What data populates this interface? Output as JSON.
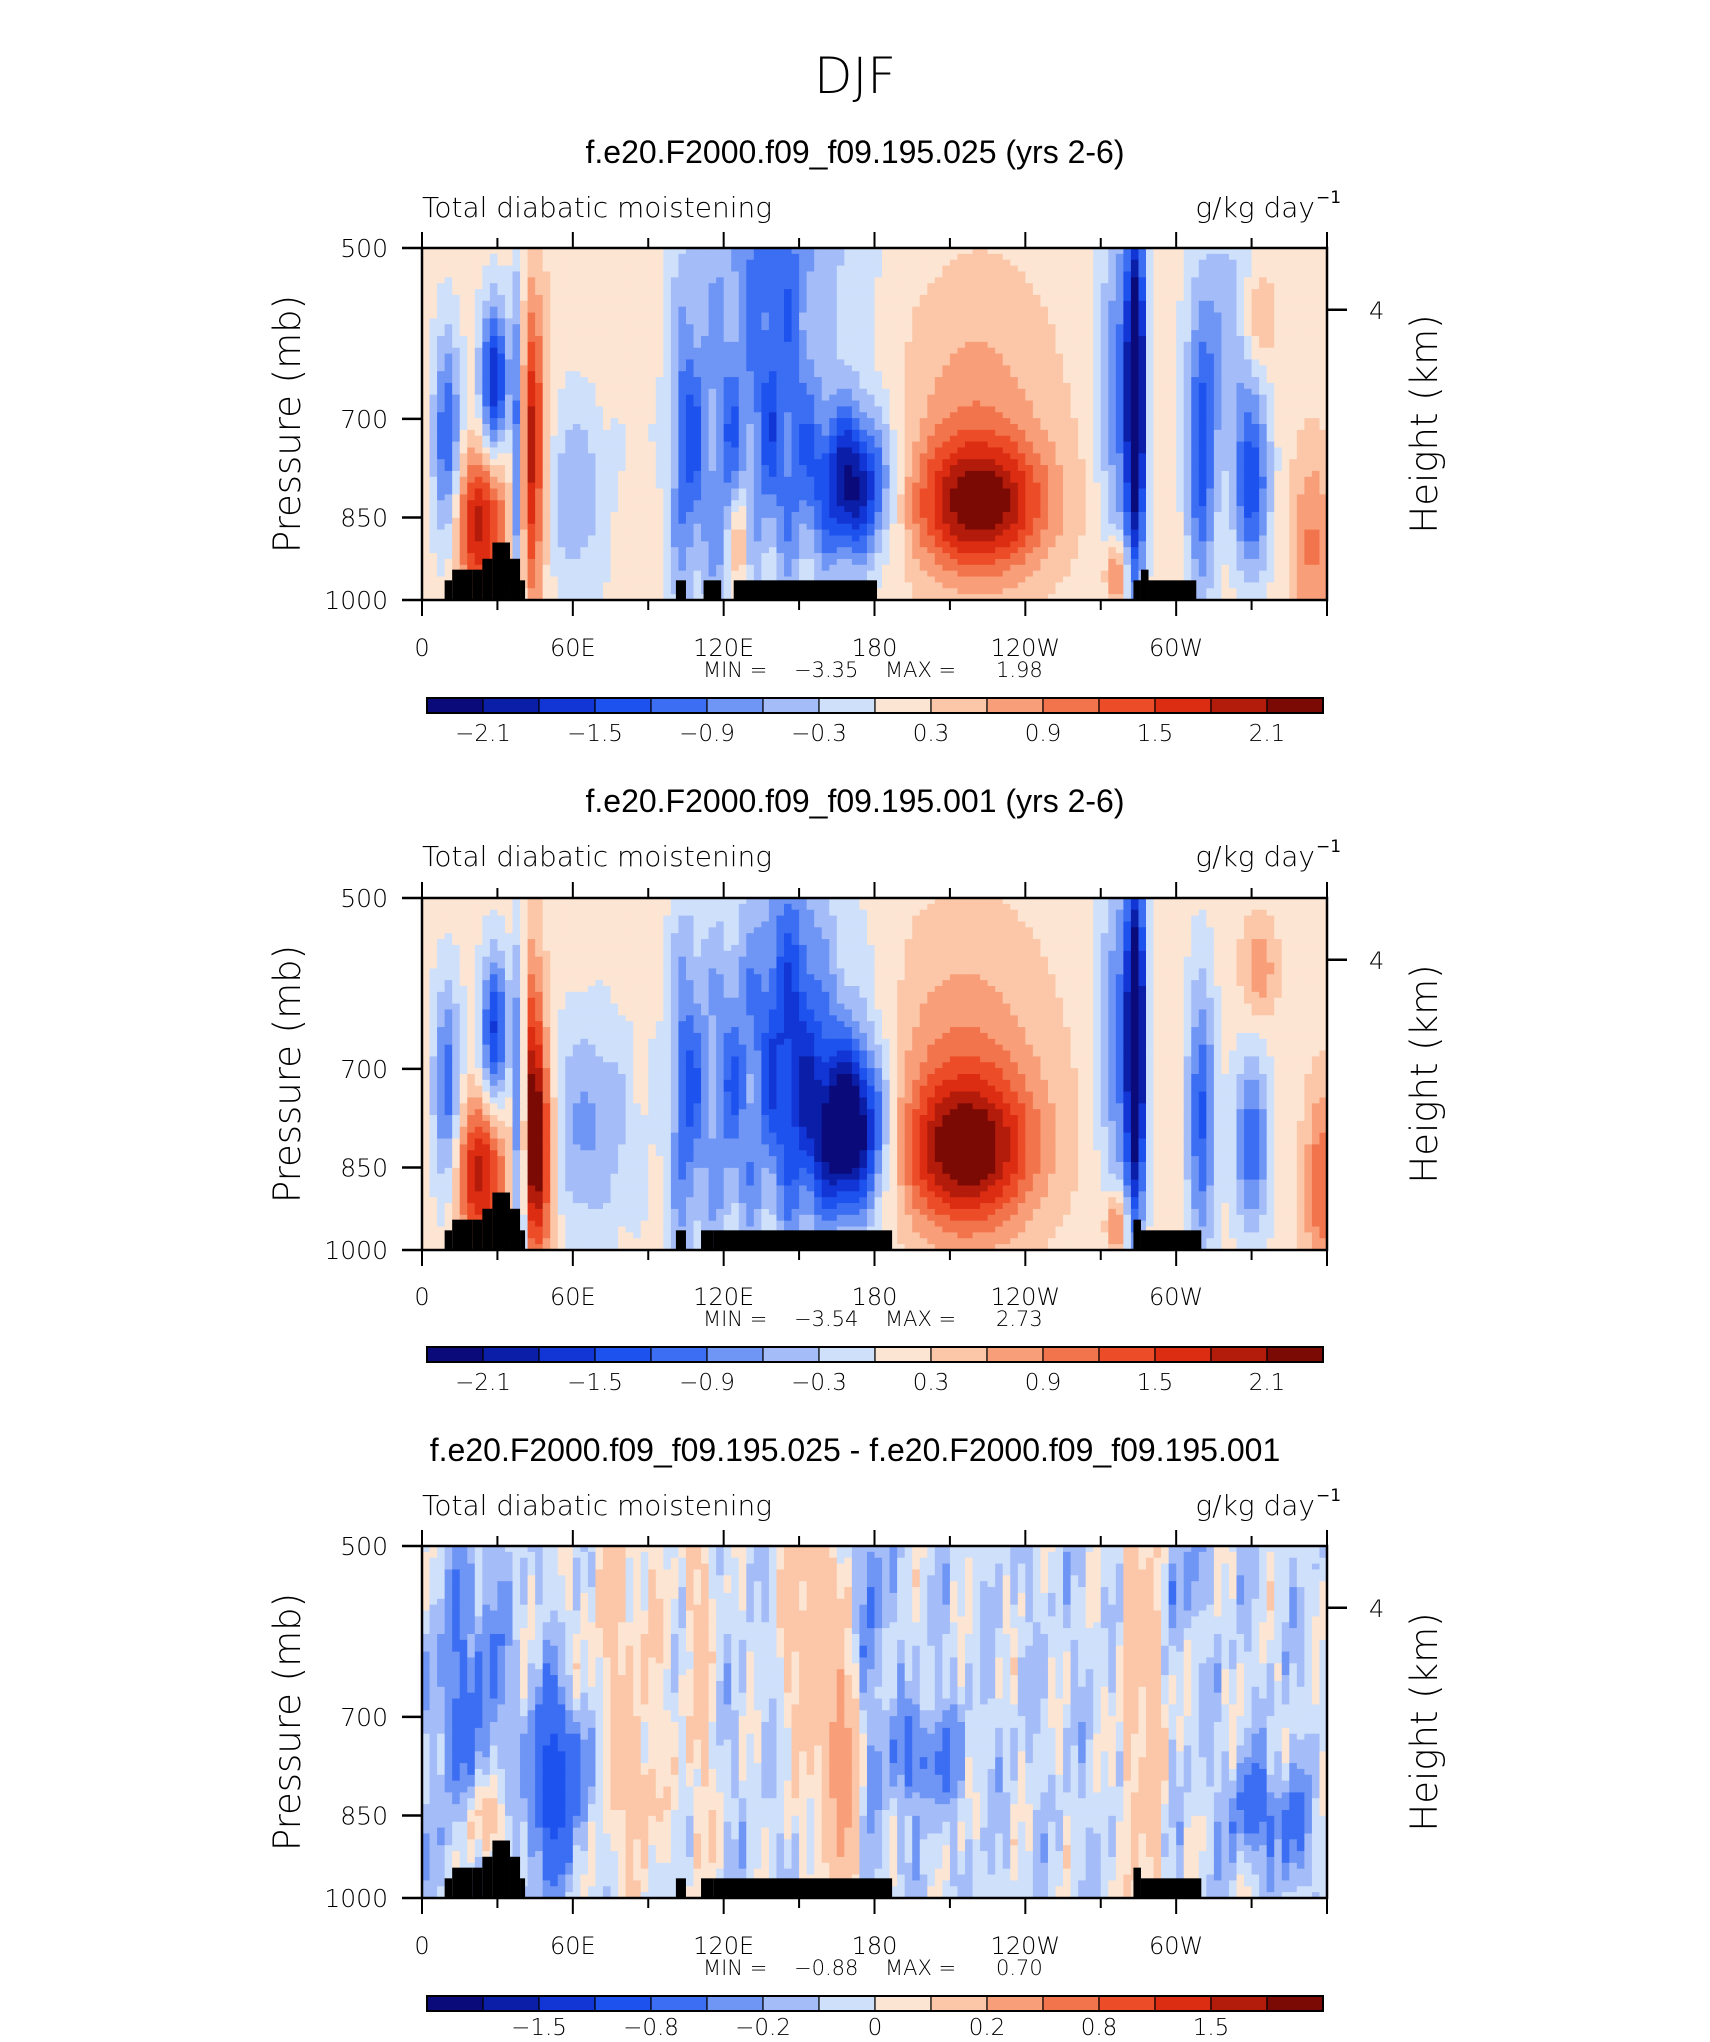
{
  "figure": {
    "title": "DJF"
  },
  "panels": [
    {
      "title": "f.e20.F2000.f09_f09.195.025 (yrs 2-6)",
      "subtitle_left": "Total diabatic moistening",
      "units": "g/kg day",
      "units_exponent": "−1",
      "ylabel": "Pressure (mb)",
      "ylabel_right": "Height (km)",
      "min_label": "MIN =",
      "min_value": "−3.35",
      "max_label": "MAX =",
      "max_value": "1.98",
      "colorbar_labels": [
        "−2.1",
        "−1.5",
        "−0.9",
        "−0.3",
        "0.3",
        "0.9",
        "1.5",
        "2.1"
      ]
    },
    {
      "title": "f.e20.F2000.f09_f09.195.001 (yrs 2-6)",
      "subtitle_left": "Total diabatic moistening",
      "units": "g/kg day",
      "units_exponent": "−1",
      "ylabel": "Pressure (mb)",
      "ylabel_right": "Height (km)",
      "min_label": "MIN =",
      "min_value": "−3.54",
      "max_label": "MAX =",
      "max_value": "2.73",
      "colorbar_labels": [
        "−2.1",
        "−1.5",
        "−0.9",
        "−0.3",
        "0.3",
        "0.9",
        "1.5",
        "2.1"
      ]
    },
    {
      "title": "f.e20.F2000.f09_f09.195.025 - f.e20.F2000.f09_f09.195.001",
      "subtitle_left": "Total diabatic moistening",
      "units": "g/kg day",
      "units_exponent": "−1",
      "ylabel": "Pressure (mb)",
      "ylabel_right": "Height (km)",
      "min_label": "MIN =",
      "min_value": "−0.88",
      "max_label": "MAX =",
      "max_value": "0.70",
      "colorbar_labels": [
        "−1.5",
        "−0.8",
        "−0.2",
        "0",
        "0.2",
        "0.8",
        "1.5"
      ]
    }
  ],
  "chart_data": [
    {
      "type": "heatmap",
      "title": "f.e20.F2000.f09_f09.195.025 (yrs 2-6)",
      "xlabel": "",
      "ylabel": "Pressure (mb)",
      "y2label": "Height (km)",
      "xlim": [
        0,
        360
      ],
      "ylim": [
        1000,
        500
      ],
      "x_ticks": [
        "0",
        "60E",
        "120E",
        "180",
        "120W",
        "60W"
      ],
      "x_tick_values": [
        0,
        60,
        120,
        180,
        240,
        300
      ],
      "y_ticks": [
        500,
        700,
        850,
        1000
      ],
      "y2_ticks": [
        4
      ],
      "colorbar_levels": [
        -2.4,
        -2.1,
        -1.8,
        -1.5,
        -1.2,
        -0.9,
        -0.6,
        -0.3,
        0,
        0.3,
        0.6,
        0.9,
        1.2,
        1.5,
        1.8,
        2.1,
        2.4
      ],
      "colorbar_colors": [
        "#0a0a7a",
        "#0b1ea8",
        "#1236d6",
        "#1e52ee",
        "#3b6ef2",
        "#6f95f5",
        "#a4bcf7",
        "#cfe0fb",
        "#fde5d3",
        "#fbc7a8",
        "#f89f7a",
        "#f2744c",
        "#ec4c27",
        "#dc2c12",
        "#b31b0b",
        "#7c0a04"
      ],
      "min": -3.35,
      "max": 1.98
    },
    {
      "type": "heatmap",
      "title": "f.e20.F2000.f09_f09.195.001 (yrs 2-6)",
      "xlabel": "",
      "ylabel": "Pressure (mb)",
      "y2label": "Height (km)",
      "xlim": [
        0,
        360
      ],
      "ylim": [
        1000,
        500
      ],
      "x_ticks": [
        "0",
        "60E",
        "120E",
        "180",
        "120W",
        "60W"
      ],
      "x_tick_values": [
        0,
        60,
        120,
        180,
        240,
        300
      ],
      "y_ticks": [
        500,
        700,
        850,
        1000
      ],
      "y2_ticks": [
        4
      ],
      "colorbar_levels": [
        -2.4,
        -2.1,
        -1.8,
        -1.5,
        -1.2,
        -0.9,
        -0.6,
        -0.3,
        0,
        0.3,
        0.6,
        0.9,
        1.2,
        1.5,
        1.8,
        2.1,
        2.4
      ],
      "colorbar_colors": [
        "#0a0a7a",
        "#0b1ea8",
        "#1236d6",
        "#1e52ee",
        "#3b6ef2",
        "#6f95f5",
        "#a4bcf7",
        "#cfe0fb",
        "#fde5d3",
        "#fbc7a8",
        "#f89f7a",
        "#f2744c",
        "#ec4c27",
        "#dc2c12",
        "#b31b0b",
        "#7c0a04"
      ],
      "min": -3.54,
      "max": 2.73
    },
    {
      "type": "heatmap",
      "title": "f.e20.F2000.f09_f09.195.025 - f.e20.F2000.f09_f09.195.001",
      "xlabel": "",
      "ylabel": "Pressure (mb)",
      "y2label": "Height (km)",
      "xlim": [
        0,
        360
      ],
      "ylim": [
        1000,
        500
      ],
      "x_ticks": [
        "0",
        "60E",
        "120E",
        "180",
        "120W",
        "60W"
      ],
      "x_tick_values": [
        0,
        60,
        120,
        180,
        240,
        300
      ],
      "y_ticks": [
        500,
        700,
        850,
        1000
      ],
      "y2_ticks": [
        4
      ],
      "colorbar_levels": [
        -2.0,
        -1.5,
        -1.2,
        -0.8,
        -0.5,
        -0.2,
        -0.1,
        0,
        0.1,
        0.2,
        0.5,
        0.8,
        1.2,
        1.5,
        2.0
      ],
      "colorbar_colors": [
        "#0a0a7a",
        "#0b1ea8",
        "#1236d6",
        "#1e52ee",
        "#3b6ef2",
        "#6f95f5",
        "#a4bcf7",
        "#cfe0fb",
        "#fde5d3",
        "#fbc7a8",
        "#f89f7a",
        "#f2744c",
        "#ec4c27",
        "#dc2c12",
        "#b31b0b",
        "#7c0a04"
      ],
      "min": -0.88,
      "max": 0.7
    }
  ]
}
